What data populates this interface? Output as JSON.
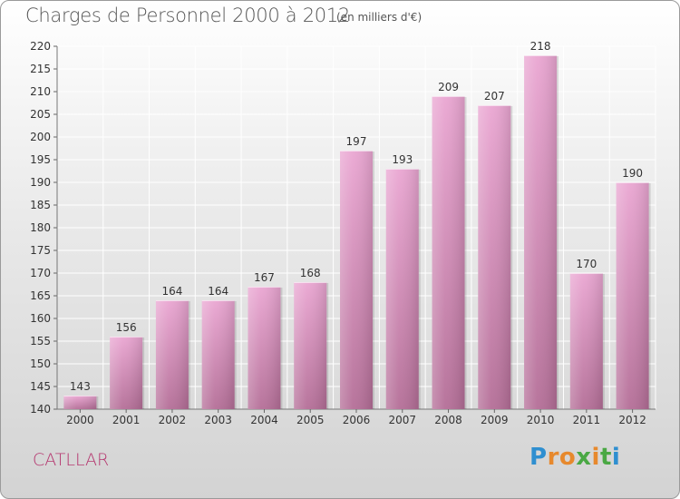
{
  "title": "Charges de Personnel 2000 à 2012",
  "subtitle": "(en milliers d'€)",
  "commune": "CATLLAR",
  "logo": {
    "letters": [
      "P",
      "r",
      "o",
      "x",
      "i",
      "t",
      "i"
    ],
    "colors": [
      "#2f8fd0",
      "#e7892d",
      "#e7892d",
      "#4aa844",
      "#e7892d",
      "#4aa844",
      "#2f8fd0"
    ]
  },
  "colors": {
    "bar_top": "#eaa6d2",
    "bar_bottom": "#b46e97",
    "grid": "#ffffff",
    "axis_text": "#333333",
    "title": "#555555",
    "commune": "#b5376f"
  },
  "chart_data": {
    "type": "bar",
    "categories": [
      "2000",
      "2001",
      "2002",
      "2003",
      "2004",
      "2005",
      "2006",
      "2007",
      "2008",
      "2009",
      "2010",
      "2011",
      "2012"
    ],
    "values": [
      143,
      156,
      164,
      164,
      167,
      168,
      197,
      193,
      209,
      207,
      218,
      170,
      190
    ],
    "ylim": [
      140,
      220
    ],
    "yticks": [
      140,
      145,
      150,
      155,
      160,
      165,
      170,
      175,
      180,
      185,
      190,
      195,
      200,
      205,
      210,
      215,
      220
    ],
    "grid": true,
    "legend": "none"
  }
}
